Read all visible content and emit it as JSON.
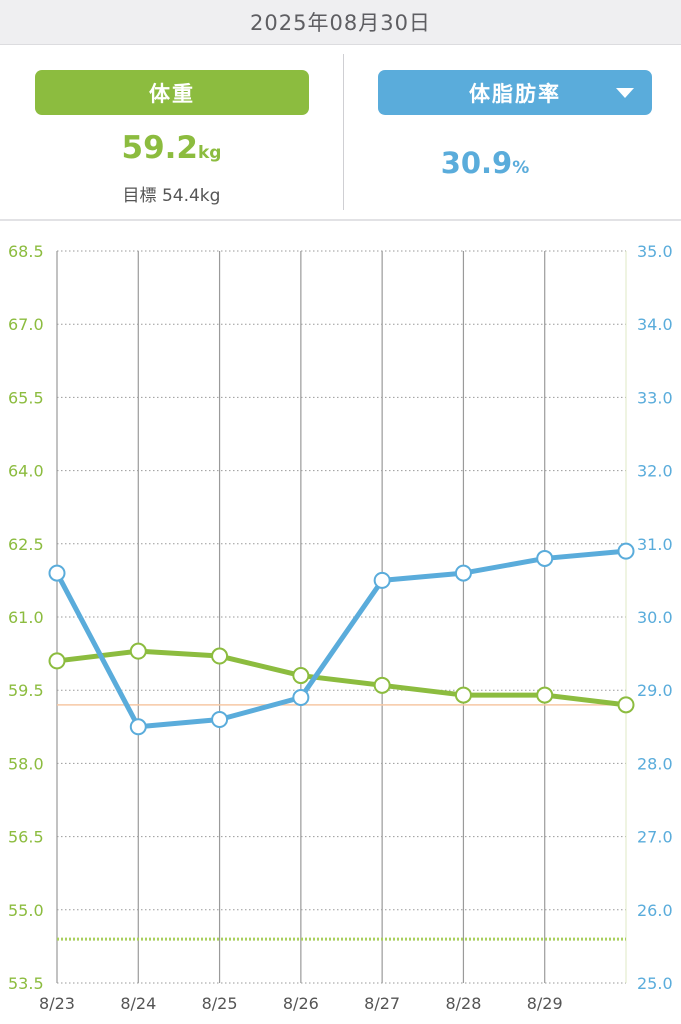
{
  "date": "2025年08月30日",
  "weight_panel": {
    "button_label": "体重",
    "value": "59.2",
    "unit": "kg",
    "goal_label": "目標",
    "goal_value": "54.4kg"
  },
  "fat_panel": {
    "button_label": "体脂肪率",
    "value": "30.9",
    "unit": "%"
  },
  "colors": {
    "weight": "#8cbc3f",
    "fat": "#5aacdb",
    "grid": "#8a8a8a",
    "goal_line": "#a9cf5e",
    "current_line": "#f6c8a4"
  },
  "chart_data": {
    "type": "line",
    "categories": [
      "8/23",
      "8/24",
      "8/25",
      "8/26",
      "8/27",
      "8/28",
      "8/29",
      "8/30"
    ],
    "x_tick_labels": [
      "8/23",
      "8/24",
      "8/25",
      "8/26",
      "8/27",
      "8/28",
      "8/29"
    ],
    "y_left": {
      "ticks": [
        "68.5",
        "67.0",
        "65.5",
        "64.0",
        "62.5",
        "61.0",
        "59.5",
        "58.0",
        "56.5",
        "55.0",
        "53.5"
      ],
      "ylim": [
        53.5,
        68.5
      ]
    },
    "y_right": {
      "ticks": [
        "35.0",
        "34.0",
        "33.0",
        "32.0",
        "31.0",
        "30.0",
        "29.0",
        "28.0",
        "27.0",
        "26.0",
        "25.0"
      ],
      "ylim": [
        25.0,
        35.0
      ]
    },
    "series": [
      {
        "key": "weight",
        "axis": "left",
        "values": [
          60.1,
          60.3,
          60.2,
          59.8,
          59.6,
          59.4,
          59.4,
          59.2
        ]
      },
      {
        "key": "fat",
        "axis": "right",
        "values": [
          30.6,
          28.5,
          28.6,
          28.9,
          30.5,
          30.6,
          30.8,
          30.9
        ]
      }
    ],
    "reference_lines": [
      {
        "key": "goal",
        "axis": "left",
        "value": 54.4
      },
      {
        "key": "current",
        "axis": "left",
        "value": 59.2
      }
    ],
    "grid": true
  }
}
